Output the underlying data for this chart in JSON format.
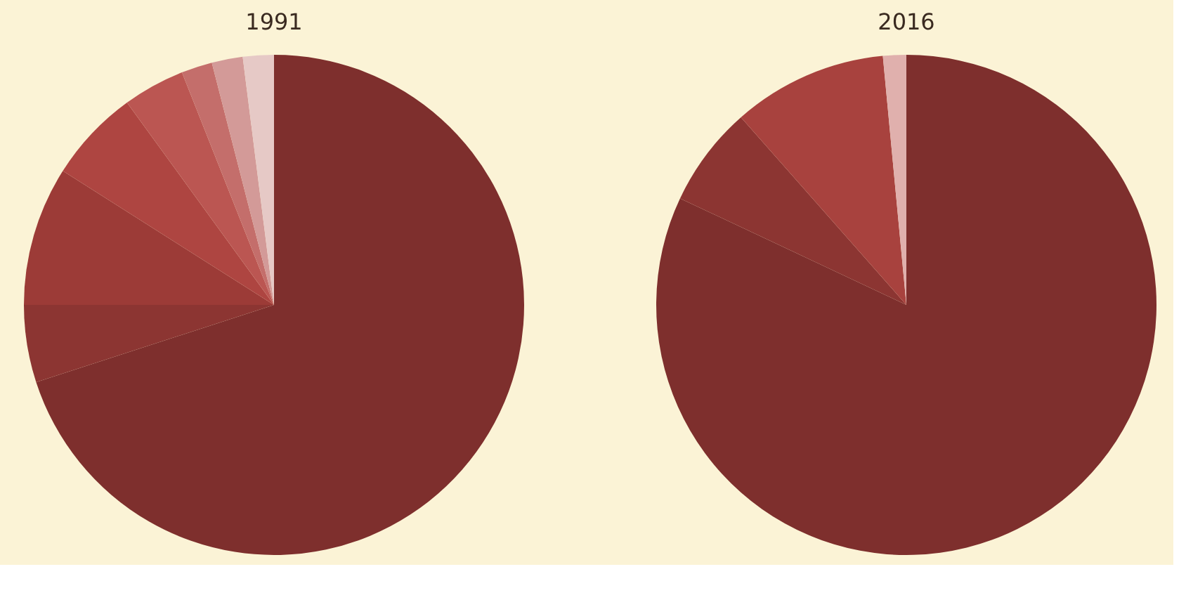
{
  "chart_data": [
    {
      "type": "pie",
      "title": "1991",
      "categories": [
        null,
        null,
        null,
        null,
        null,
        null,
        null,
        null
      ],
      "values": [
        70,
        5,
        9,
        6,
        4,
        2,
        2,
        2
      ],
      "colors": [
        "#7e2f2d",
        "#8c3532",
        "#9c3b37",
        "#ae4541",
        "#bb5652",
        "#c46e6b",
        "#d39a98",
        "#e6c9c6"
      ]
    },
    {
      "type": "pie",
      "title": "2016",
      "categories": [
        null,
        null,
        null,
        null
      ],
      "values": [
        82,
        6.5,
        10,
        1.5
      ],
      "colors": [
        "#7e2f2d",
        "#8c3532",
        "#a8423e",
        "#e0b0ad"
      ]
    }
  ]
}
